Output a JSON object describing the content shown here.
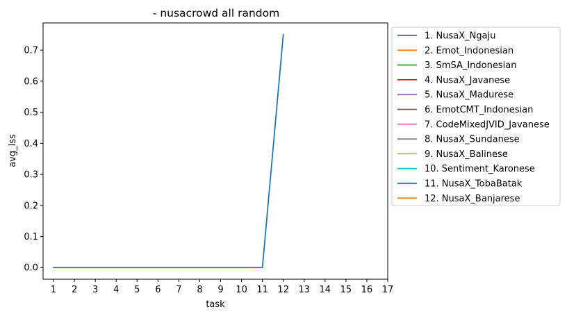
{
  "chart_data": {
    "type": "line",
    "title": "- nusacrowd all random",
    "xlabel": "task",
    "ylabel": "avg_lss",
    "xlim": [
      0.5,
      17
    ],
    "ylim": [
      -0.0375,
      0.7875
    ],
    "xticks": [
      "1",
      "2",
      "3",
      "4",
      "5",
      "6",
      "7",
      "8",
      "9",
      "10",
      "11",
      "12",
      "13",
      "14",
      "15",
      "16",
      "17"
    ],
    "yticks": [
      "0.0",
      "0.1",
      "0.2",
      "0.3",
      "0.4",
      "0.5",
      "0.6",
      "0.7"
    ],
    "grid": false,
    "legend_position": "outside-right",
    "series": [
      {
        "name": "1. NusaX_Ngaju",
        "color": "#1f77b4",
        "x": [
          1,
          2,
          3,
          4,
          5,
          6,
          7,
          8,
          9,
          10,
          11,
          12
        ],
        "y": [
          0,
          0,
          0,
          0,
          0,
          0,
          0,
          0,
          0,
          0,
          0,
          0.75
        ]
      },
      {
        "name": "2. Emot_Indonesian",
        "color": "#ff7f0e",
        "x": [],
        "y": []
      },
      {
        "name": "3. SmSA_Indonesian",
        "color": "#2ca02c",
        "x": [],
        "y": []
      },
      {
        "name": "4. NusaX_Javanese",
        "color": "#d62728",
        "x": [],
        "y": []
      },
      {
        "name": "5. NusaX_Madurese",
        "color": "#9467bd",
        "x": [],
        "y": []
      },
      {
        "name": "6. EmotCMT_Indonesian",
        "color": "#8c564b",
        "x": [],
        "y": []
      },
      {
        "name": "7. CodeMixedJVID_Javanese",
        "color": "#e377c2",
        "x": [],
        "y": []
      },
      {
        "name": "8. NusaX_Sundanese",
        "color": "#7f7f7f",
        "x": [],
        "y": []
      },
      {
        "name": "9. NusaX_Balinese",
        "color": "#bcbd22",
        "x": [],
        "y": []
      },
      {
        "name": "10. Sentiment_Karonese",
        "color": "#17becf",
        "x": [],
        "y": []
      },
      {
        "name": "11. NusaX_TobaBatak",
        "color": "#1f77b4",
        "x": [],
        "y": []
      },
      {
        "name": "12. NusaX_Banjarese",
        "color": "#ff7f0e",
        "x": [],
        "y": []
      }
    ]
  }
}
